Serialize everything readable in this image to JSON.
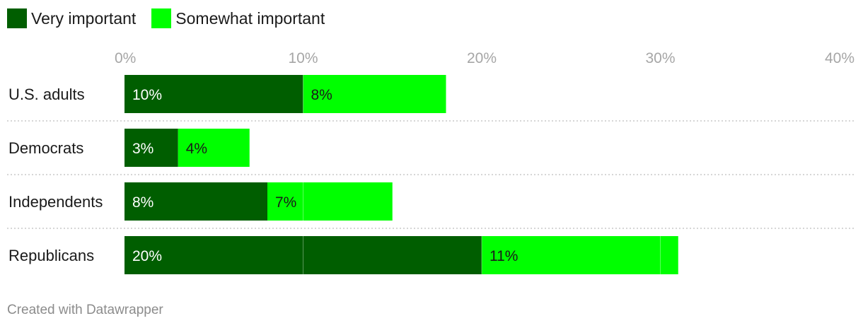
{
  "chart_data": {
    "type": "bar",
    "orientation": "horizontal",
    "stacked": true,
    "categories": [
      "U.S. adults",
      "Democrats",
      "Independents",
      "Republicans"
    ],
    "series": [
      {
        "name": "Very important",
        "values": [
          10,
          3,
          8,
          20
        ],
        "labels": [
          "10%",
          "3%",
          "8%",
          "20%"
        ],
        "color": "#005e00",
        "label_color": "#ffffff"
      },
      {
        "name": "Somewhat important",
        "values": [
          8,
          4,
          7,
          11
        ],
        "labels": [
          "8%",
          "4%",
          "7%",
          "11%"
        ],
        "color": "#00ff00",
        "label_color": "#1a1a1a"
      }
    ],
    "xlim": [
      0,
      40
    ],
    "xticks": [
      0,
      10,
      20,
      30,
      40
    ],
    "xtick_labels": [
      "0%",
      "10%",
      "20%",
      "30%",
      "40%"
    ],
    "grid": true,
    "legend_position": "top-left"
  },
  "credit": "Created with Datawrapper"
}
